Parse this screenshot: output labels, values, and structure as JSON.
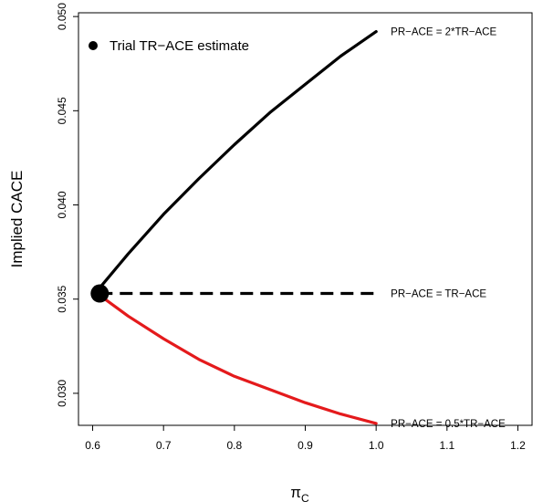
{
  "chart_data": {
    "type": "line",
    "xlabel": "π",
    "xlabel_sub": "C",
    "ylabel": "Implied CACE",
    "xlim": [
      0.58,
      1.22
    ],
    "ylim": [
      0.0283,
      0.0502
    ],
    "x_ticks": [
      0.6,
      0.7,
      0.8,
      0.9,
      1.0,
      1.1,
      1.2
    ],
    "x_tick_labels": [
      "0.6",
      "0.7",
      "0.8",
      "0.9",
      "1.0",
      "1.1",
      "1.2"
    ],
    "y_ticks": [
      0.03,
      0.035,
      0.04,
      0.045,
      0.05
    ],
    "y_tick_labels": [
      "0.030",
      "0.035",
      "0.040",
      "0.045",
      "0.050"
    ],
    "grid": false,
    "legend_position": "top-left",
    "legend": [
      {
        "label": "Trial TR−ACE estimate",
        "marker": "filled-circle"
      }
    ],
    "point": {
      "x": 0.61,
      "y": 0.0353,
      "label": "Trial TR−ACE estimate"
    },
    "series": [
      {
        "name": "PR−ACE = 2*TR−ACE",
        "color": "#000000",
        "dash": "solid",
        "x": [
          0.61,
          0.65,
          0.7,
          0.75,
          0.8,
          0.85,
          0.9,
          0.95,
          1.0
        ],
        "y": [
          0.0356,
          0.0374,
          0.0395,
          0.0414,
          0.0432,
          0.0449,
          0.0464,
          0.0479,
          0.0492
        ]
      },
      {
        "name": "PR−ACE = TR−ACE",
        "color": "#000000",
        "dash": "dashed",
        "x": [
          0.61,
          1.0
        ],
        "y": [
          0.0353,
          0.0353
        ]
      },
      {
        "name": "PR−ACE = 0.5*TR−ACE",
        "color": "#e41a1c",
        "dash": "solid",
        "x": [
          0.61,
          0.65,
          0.7,
          0.75,
          0.8,
          0.85,
          0.9,
          0.95,
          1.0
        ],
        "y": [
          0.0352,
          0.0341,
          0.0329,
          0.0318,
          0.0309,
          0.0302,
          0.0295,
          0.0289,
          0.0284
        ]
      }
    ]
  }
}
